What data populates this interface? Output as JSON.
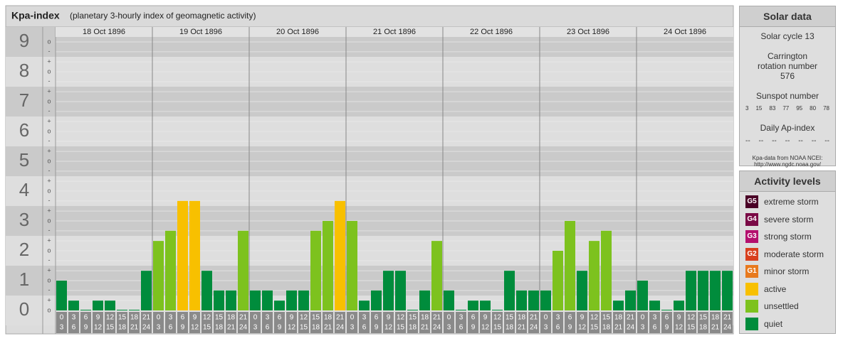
{
  "chart_data": {
    "type": "bar",
    "title": "Kpa-index",
    "subtitle": "(planetary 3-hourly index of geomagnetic activity)",
    "ylim": [
      -0.5,
      9.5
    ],
    "yticks": [
      0,
      1,
      2,
      3,
      4,
      5,
      6,
      7,
      8,
      9
    ],
    "minor_ticks": [
      {
        "value": 0,
        "label": "o"
      },
      {
        "value": 0.33,
        "label": "+"
      },
      {
        "value": 0.67,
        "label": "-"
      },
      {
        "value": 1,
        "label": "o"
      },
      {
        "value": 1.33,
        "label": "+"
      },
      {
        "value": 1.67,
        "label": "-"
      },
      {
        "value": 2,
        "label": "o"
      },
      {
        "value": 2.33,
        "label": "+"
      },
      {
        "value": 2.67,
        "label": "-"
      },
      {
        "value": 3,
        "label": "o"
      },
      {
        "value": 3.33,
        "label": "+"
      },
      {
        "value": 3.67,
        "label": "-"
      },
      {
        "value": 4,
        "label": "o"
      },
      {
        "value": 4.33,
        "label": "+"
      },
      {
        "value": 4.67,
        "label": "-"
      },
      {
        "value": 5,
        "label": "o"
      },
      {
        "value": 5.33,
        "label": "+"
      },
      {
        "value": 5.67,
        "label": "-"
      },
      {
        "value": 6,
        "label": "o"
      },
      {
        "value": 6.33,
        "label": "+"
      },
      {
        "value": 6.67,
        "label": "-"
      },
      {
        "value": 7,
        "label": "o"
      },
      {
        "value": 7.33,
        "label": "+"
      },
      {
        "value": 7.67,
        "label": "-"
      },
      {
        "value": 8,
        "label": "o"
      },
      {
        "value": 8.33,
        "label": "+"
      },
      {
        "value": 8.67,
        "label": "-"
      },
      {
        "value": 9,
        "label": "o"
      }
    ],
    "hours": [
      [
        0,
        3
      ],
      [
        3,
        6
      ],
      [
        6,
        9
      ],
      [
        9,
        12
      ],
      [
        12,
        15
      ],
      [
        15,
        18
      ],
      [
        18,
        21
      ],
      [
        21,
        24
      ]
    ],
    "days": [
      {
        "label": "18 Oct 1896",
        "values": [
          1,
          0.33,
          0,
          0.33,
          0.33,
          0,
          0,
          1.33
        ],
        "colors": [
          "#008c3c",
          "#008c3c",
          "#008c3c",
          "#008c3c",
          "#008c3c",
          "#008c3c",
          "#008c3c",
          "#008c3c"
        ]
      },
      {
        "label": "19 Oct 1896",
        "values": [
          2.33,
          2.67,
          3.67,
          3.67,
          1.33,
          0.67,
          0.67,
          2.67
        ],
        "colors": [
          "#7dc21e",
          "#7dc21e",
          "#f8c000",
          "#f8c000",
          "#008c3c",
          "#008c3c",
          "#008c3c",
          "#7dc21e"
        ]
      },
      {
        "label": "20 Oct 1896",
        "values": [
          0.67,
          0.67,
          0.33,
          0.67,
          0.67,
          2.67,
          3,
          3.67
        ],
        "colors": [
          "#008c3c",
          "#008c3c",
          "#008c3c",
          "#008c3c",
          "#008c3c",
          "#7dc21e",
          "#7dc21e",
          "#f8c000"
        ]
      },
      {
        "label": "21 Oct 1896",
        "values": [
          3,
          0.33,
          0.67,
          1.33,
          1.33,
          0,
          0.67,
          2.33
        ],
        "colors": [
          "#7dc21e",
          "#008c3c",
          "#008c3c",
          "#008c3c",
          "#008c3c",
          "#008c3c",
          "#008c3c",
          "#7dc21e"
        ]
      },
      {
        "label": "22 Oct 1896",
        "values": [
          0.67,
          0,
          0.33,
          0.33,
          0,
          1.33,
          0.67,
          0.67
        ],
        "colors": [
          "#008c3c",
          "#008c3c",
          "#008c3c",
          "#008c3c",
          "#008c3c",
          "#008c3c",
          "#008c3c",
          "#008c3c"
        ]
      },
      {
        "label": "23 Oct 1896",
        "values": [
          0.67,
          2,
          3,
          1.33,
          2.33,
          2.67,
          0.33,
          0.67
        ],
        "colors": [
          "#008c3c",
          "#7dc21e",
          "#7dc21e",
          "#008c3c",
          "#7dc21e",
          "#7dc21e",
          "#008c3c",
          "#008c3c"
        ]
      },
      {
        "label": "24 Oct 1896",
        "values": [
          1,
          0.33,
          0,
          0.33,
          1.33,
          1.33,
          1.33,
          1.33
        ],
        "colors": [
          "#008c3c",
          "#008c3c",
          "#008c3c",
          "#008c3c",
          "#008c3c",
          "#008c3c",
          "#008c3c",
          "#008c3c"
        ]
      }
    ]
  },
  "solar": {
    "title": "Solar data",
    "cycle": "Solar cycle 13",
    "rotation": "Carrington rotation number 576",
    "sunspot_title": "Sunspot number",
    "sunspots": [
      3,
      15,
      83,
      77,
      95,
      80,
      78
    ],
    "ap_title": "Daily Ap-index",
    "ap": [
      "--",
      "--",
      "--",
      "--",
      "--",
      "--",
      "--"
    ],
    "source": "Kpa-data from NOAA NCEI: http://www.ngdc.noaa.gov/"
  },
  "levels": {
    "title": "Activity levels",
    "items": [
      {
        "badge": "G5",
        "label": "extreme storm",
        "color": "#4a0026"
      },
      {
        "badge": "G4",
        "label": "severe storm",
        "color": "#7a0a46"
      },
      {
        "badge": "G3",
        "label": "strong storm",
        "color": "#b4106e"
      },
      {
        "badge": "G2",
        "label": "moderate storm",
        "color": "#d8401e"
      },
      {
        "badge": "G1",
        "label": "minor storm",
        "color": "#e87a1e"
      },
      {
        "label": "active",
        "color": "#f8c000"
      },
      {
        "label": "unsettled",
        "color": "#7dc21e"
      },
      {
        "label": "quiet",
        "color": "#008c3c"
      }
    ]
  }
}
